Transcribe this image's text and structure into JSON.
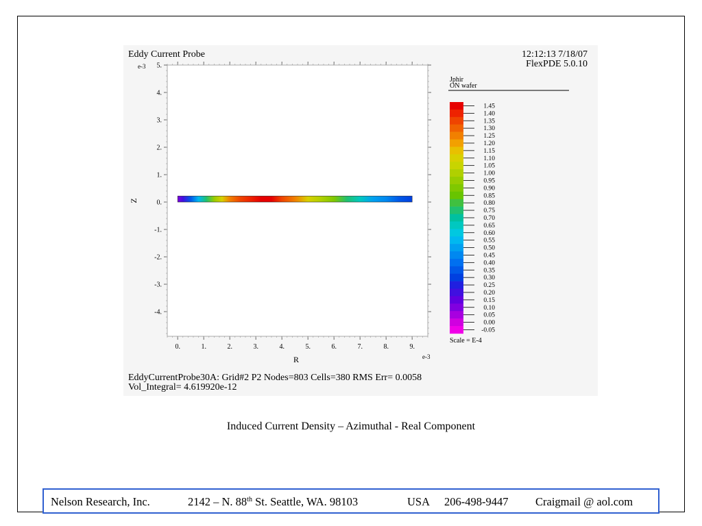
{
  "chart_data": {
    "type": "heatmap",
    "title": "Eddy Current Probe",
    "timestamp": "12:12:13 7/18/07",
    "software": "FlexPDE 5.0.10",
    "xlabel": "R",
    "ylabel": "Z",
    "x_exponent": "e-3",
    "y_exponent": "e-3",
    "xlim": [
      -0.4,
      9.6
    ],
    "ylim": [
      -4.9,
      5.0
    ],
    "x_ticks": [
      "0.",
      "1.",
      "2.",
      "3.",
      "4.",
      "5.",
      "6.",
      "7.",
      "8.",
      "9."
    ],
    "y_ticks": [
      "5.",
      "4.",
      "3.",
      "2.",
      "1.",
      "0.",
      "-1.",
      "-2.",
      "-3.",
      "-4."
    ],
    "strip": {
      "r_range": [
        0,
        9
      ],
      "z_range": [
        0,
        0.22
      ],
      "r": [
        0,
        0.2,
        0.5,
        0.8,
        1.1,
        1.4,
        1.7,
        2.0,
        2.4,
        2.8,
        3.2,
        3.6,
        4.0,
        4.5,
        5.0,
        5.5,
        6.0,
        6.5,
        7.0,
        7.5,
        8.0,
        8.5,
        9.0
      ],
      "values": [
        0.1,
        0.2,
        0.35,
        0.55,
        0.75,
        0.95,
        1.1,
        1.25,
        1.35,
        1.42,
        1.45,
        1.43,
        1.35,
        1.25,
        1.12,
        1.0,
        0.88,
        0.75,
        0.63,
        0.52,
        0.43,
        0.36,
        0.3
      ]
    },
    "legend": {
      "variable": "Jphir",
      "region": "ON wafer",
      "scale_note": "Scale = E-4",
      "levels": [
        "1.45",
        "1.40",
        "1.35",
        "1.30",
        "1.25",
        "1.20",
        "1.15",
        "1.10",
        "1.05",
        "1.00",
        "0.95",
        "0.90",
        "0.85",
        "0.80",
        "0.75",
        "0.70",
        "0.65",
        "0.60",
        "0.55",
        "0.50",
        "0.45",
        "0.40",
        "0.35",
        "0.30",
        "0.25",
        "0.20",
        "0.15",
        "0.10",
        "0.05",
        "0.00",
        "-0.05"
      ],
      "colors": [
        "#e60000",
        "#ee2200",
        "#ef4400",
        "#f06200",
        "#f18000",
        "#f2a000",
        "#e8c000",
        "#d8d000",
        "#c8d400",
        "#b0d000",
        "#98cc00",
        "#80c800",
        "#68c400",
        "#40c040",
        "#20c070",
        "#00c0a0",
        "#00c8c0",
        "#00c8e0",
        "#00b8f0",
        "#00a0f0",
        "#0088f0",
        "#0070f0",
        "#0058e8",
        "#0040e0",
        "#2020e0",
        "#4010e0",
        "#6000e0",
        "#8000e0",
        "#a800e0",
        "#d000e0",
        "#f000e8"
      ],
      "level_tick_color": "#000000"
    }
  },
  "stats": {
    "line1": "EddyCurrentProbe30A:  Grid#2  P2  Nodes=803 Cells=380 RMS Err= 0.0058",
    "line2": "Vol_Integral=  4.619920e-12"
  },
  "caption": "Induced Current Density – Azimuthal - Real Component",
  "footer": {
    "company": "Nelson Research, Inc.",
    "address_number": "2142 –  N. 88",
    "address_sup": "th",
    "address_rest": " St. Seattle, WA. 98103",
    "country": "USA",
    "phone": "206-498-9447",
    "email": "Craigmail @ aol.com"
  }
}
